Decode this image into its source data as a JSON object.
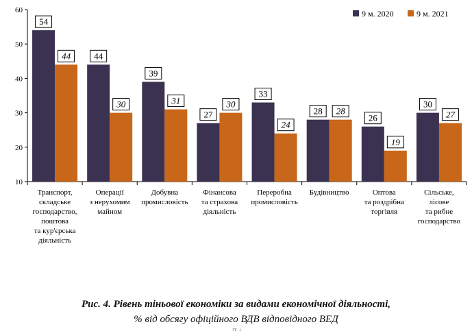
{
  "chart_data": {
    "type": "bar",
    "categories": [
      [
        "Транспорт,",
        "складське",
        "господарство,",
        "поштова",
        "та кур'єрська",
        "діяльність"
      ],
      [
        "Операції",
        "з нерухомим",
        "майном"
      ],
      [
        "Добувна",
        "промисловість"
      ],
      [
        "Фінансова",
        "та страхова",
        "діяльність"
      ],
      [
        "Переробна",
        "промисловість"
      ],
      [
        "Будівництво"
      ],
      [
        "Оптова",
        "та роздрібна",
        "торгівля"
      ],
      [
        "Сільське,",
        "лісове",
        "та рибне",
        "господарство"
      ]
    ],
    "series": [
      {
        "name": "9 м. 2020",
        "color": "#3b3150",
        "values": [
          54,
          44,
          39,
          27,
          33,
          28,
          26,
          30
        ]
      },
      {
        "name": "9 м. 2021",
        "color": "#c8661a",
        "values": [
          44,
          30,
          31,
          30,
          24,
          28,
          19,
          27
        ]
      }
    ],
    "yticks": [
      10,
      20,
      30,
      40,
      50,
      60
    ],
    "ylim": [
      10,
      60
    ],
    "legend_position": "top-right",
    "grid": false
  },
  "caption": {
    "line1": "Рис. 4. Рівень тіньової економіки за видами економічної діяльності,",
    "line2": "% від обсягу офіційного ВДВ відповідного ВЕД",
    "line3": "Д                                            і"
  }
}
